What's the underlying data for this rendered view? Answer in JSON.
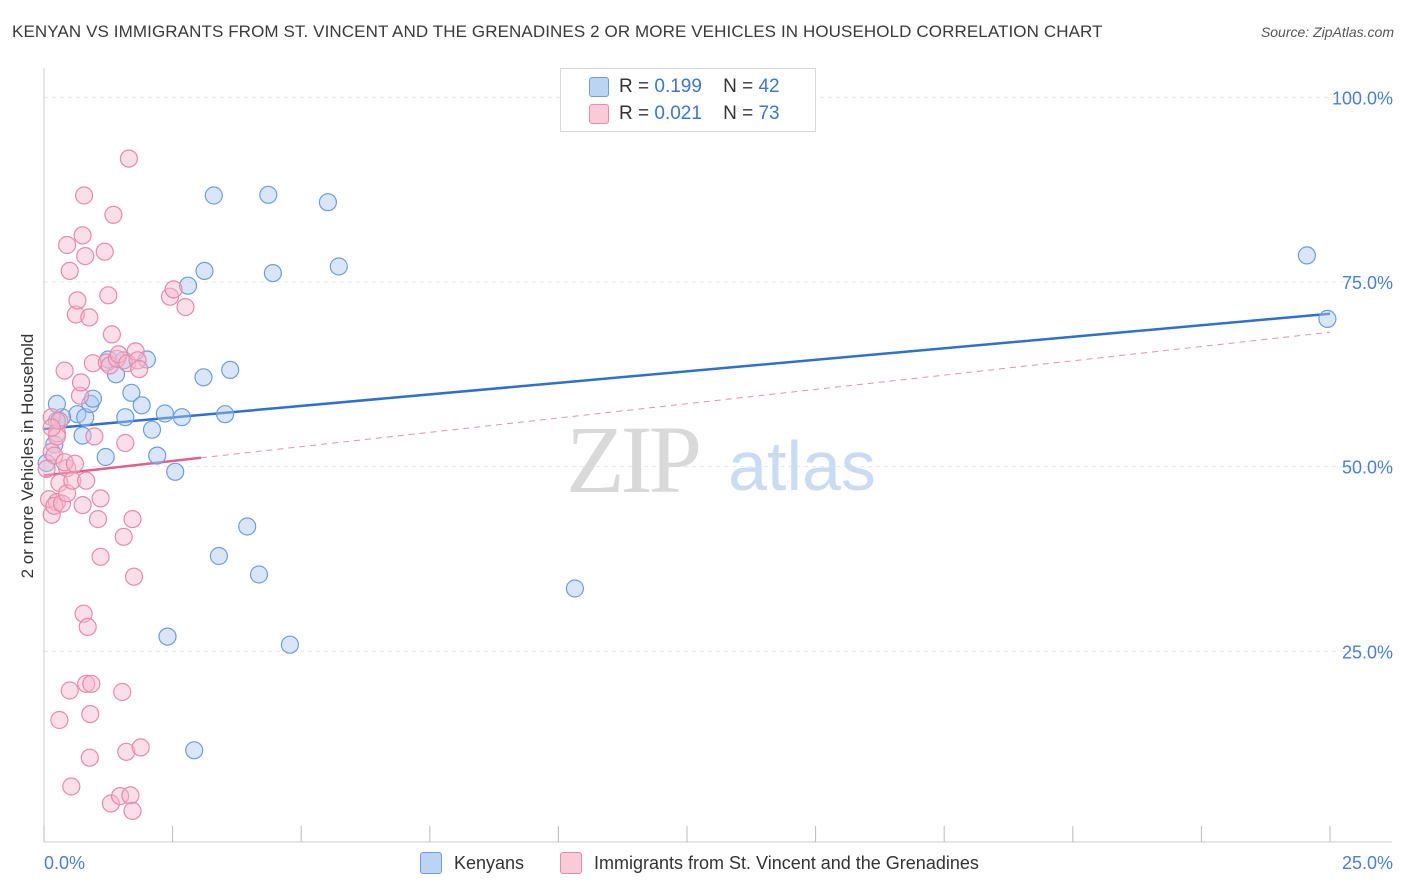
{
  "title": "KENYAN VS IMMIGRANTS FROM ST. VINCENT AND THE GRENADINES 2 OR MORE VEHICLES IN HOUSEHOLD CORRELATION CHART",
  "source": "Source: ZipAtlas.com",
  "watermark": {
    "zip": "ZIP",
    "atlas": "atlas"
  },
  "legend_top": {
    "r_label": "R =",
    "n_label": "N =",
    "rows": [
      {
        "r": "0.199",
        "n": "42"
      },
      {
        "r": "0.021",
        "n": "73"
      }
    ]
  },
  "colors": {
    "blue_fill": "#a9c8f0",
    "blue_stroke": "#6d9de0",
    "blue_line": "#2f6fce",
    "pink_fill": "#f5b9cb",
    "pink_stroke": "#e88aa8",
    "pink_line": "#e0608a",
    "axis_text": "#4a7fd6",
    "grid": "#e6e6e6"
  },
  "chart_data": {
    "type": "scatter",
    "xlabel": "",
    "ylabel": "2 or more Vehicles in Household",
    "xlim": [
      0,
      0.25
    ],
    "ylim": [
      0,
      1.0
    ],
    "x_tick_labels": [
      "0.0%",
      "25.0%"
    ],
    "y_ticks": [
      0.25,
      0.5,
      0.75,
      1.0
    ],
    "y_tick_labels": [
      "25.0%",
      "50.0%",
      "75.0%",
      "100.0%"
    ],
    "grid": true,
    "series": [
      {
        "name": "Kenyans",
        "color": "blue",
        "r": 0.199,
        "n": 42,
        "trend": {
          "x": [
            0.0,
            0.25
          ],
          "y": [
            0.551,
            0.707
          ],
          "style": "solid"
        },
        "points": [
          [
            0.0065,
            0.571
          ],
          [
            0.0035,
            0.567
          ],
          [
            0.0025,
            0.562
          ],
          [
            0.0075,
            0.542
          ],
          [
            0.002,
            0.53
          ],
          [
            0.0005,
            0.505
          ],
          [
            0.0025,
            0.585
          ],
          [
            0.008,
            0.567
          ],
          [
            0.009,
            0.585
          ],
          [
            0.0095,
            0.592
          ],
          [
            0.012,
            0.513
          ],
          [
            0.0125,
            0.645
          ],
          [
            0.014,
            0.625
          ],
          [
            0.0155,
            0.644
          ],
          [
            0.0158,
            0.567
          ],
          [
            0.017,
            0.6
          ],
          [
            0.019,
            0.583
          ],
          [
            0.02,
            0.645
          ],
          [
            0.021,
            0.55
          ],
          [
            0.022,
            0.515
          ],
          [
            0.0235,
            0.572
          ],
          [
            0.024,
            0.27
          ],
          [
            0.0255,
            0.493
          ],
          [
            0.0268,
            0.567
          ],
          [
            0.028,
            0.745
          ],
          [
            0.0292,
            0.116
          ],
          [
            0.031,
            0.621
          ],
          [
            0.0312,
            0.765
          ],
          [
            0.033,
            0.867
          ],
          [
            0.034,
            0.379
          ],
          [
            0.0352,
            0.571
          ],
          [
            0.0362,
            0.631
          ],
          [
            0.0395,
            0.419
          ],
          [
            0.0418,
            0.354
          ],
          [
            0.0436,
            0.868
          ],
          [
            0.0445,
            0.762
          ],
          [
            0.0478,
            0.259
          ],
          [
            0.0552,
            0.858
          ],
          [
            0.0573,
            0.771
          ],
          [
            0.1032,
            0.335
          ],
          [
            0.2455,
            0.786
          ],
          [
            0.2495,
            0.7
          ]
        ]
      },
      {
        "name": "Immigrants from St. Vincent and the Grenadines",
        "color": "pink",
        "r": 0.021,
        "n": 73,
        "trend": {
          "x": [
            0.0,
            0.0305
          ],
          "y": [
            0.488,
            0.512
          ],
          "style": "solid",
          "dashed_extension": {
            "x": [
              0.0305,
              0.25
            ],
            "y": [
              0.512,
              0.682
            ]
          }
        },
        "points": [
          [
            0.0015,
            0.52
          ],
          [
            0.0015,
            0.435
          ],
          [
            0.002,
            0.515
          ],
          [
            0.003,
            0.478
          ],
          [
            0.0005,
            0.497
          ],
          [
            0.001,
            0.456
          ],
          [
            0.0025,
            0.452
          ],
          [
            0.002,
            0.447
          ],
          [
            0.003,
            0.157
          ],
          [
            0.0015,
            0.567
          ],
          [
            0.0025,
            0.545
          ],
          [
            0.004,
            0.63
          ],
          [
            0.0025,
            0.541
          ],
          [
            0.0035,
            0.45
          ],
          [
            0.003,
            0.562
          ],
          [
            0.0045,
            0.498
          ],
          [
            0.004,
            0.506
          ],
          [
            0.0045,
            0.464
          ],
          [
            0.0045,
            0.8
          ],
          [
            0.005,
            0.765
          ],
          [
            0.005,
            0.197
          ],
          [
            0.0053,
            0.067
          ],
          [
            0.0055,
            0.481
          ],
          [
            0.006,
            0.504
          ],
          [
            0.0062,
            0.706
          ],
          [
            0.0065,
            0.725
          ],
          [
            0.007,
            0.596
          ],
          [
            0.0072,
            0.614
          ],
          [
            0.0075,
            0.813
          ],
          [
            0.0075,
            0.448
          ],
          [
            0.0077,
            0.301
          ],
          [
            0.0078,
            0.867
          ],
          [
            0.008,
            0.785
          ],
          [
            0.0082,
            0.481
          ],
          [
            0.0082,
            0.206
          ],
          [
            0.0085,
            0.283
          ],
          [
            0.0088,
            0.702
          ],
          [
            0.0089,
            0.106
          ],
          [
            0.009,
            0.165
          ],
          [
            0.0092,
            0.206
          ],
          [
            0.0095,
            0.64
          ],
          [
            0.0098,
            0.541
          ],
          [
            0.0105,
            0.429
          ],
          [
            0.011,
            0.457
          ],
          [
            0.011,
            0.378
          ],
          [
            0.0118,
            0.791
          ],
          [
            0.0122,
            0.641
          ],
          [
            0.0125,
            0.732
          ],
          [
            0.0128,
            0.637
          ],
          [
            0.013,
            0.044
          ],
          [
            0.0132,
            0.679
          ],
          [
            0.0135,
            0.841
          ],
          [
            0.0142,
            0.646
          ],
          [
            0.0145,
            0.652
          ],
          [
            0.0148,
            0.054
          ],
          [
            0.0152,
            0.195
          ],
          [
            0.0155,
            0.405
          ],
          [
            0.0158,
            0.532
          ],
          [
            0.016,
            0.114
          ],
          [
            0.0162,
            0.64
          ],
          [
            0.0165,
            0.917
          ],
          [
            0.0168,
            0.055
          ],
          [
            0.0172,
            0.034
          ],
          [
            0.0172,
            0.429
          ],
          [
            0.0175,
            0.351
          ],
          [
            0.0178,
            0.656
          ],
          [
            0.0182,
            0.644
          ],
          [
            0.0185,
            0.632
          ],
          [
            0.0188,
            0.12
          ],
          [
            0.0245,
            0.73
          ],
          [
            0.0252,
            0.74
          ],
          [
            0.0275,
            0.716
          ],
          [
            0.0015,
            0.553
          ]
        ]
      }
    ]
  },
  "legend_bottom": [
    {
      "label": "Kenyans"
    },
    {
      "label": "Immigrants from St. Vincent and the Grenadines"
    }
  ]
}
